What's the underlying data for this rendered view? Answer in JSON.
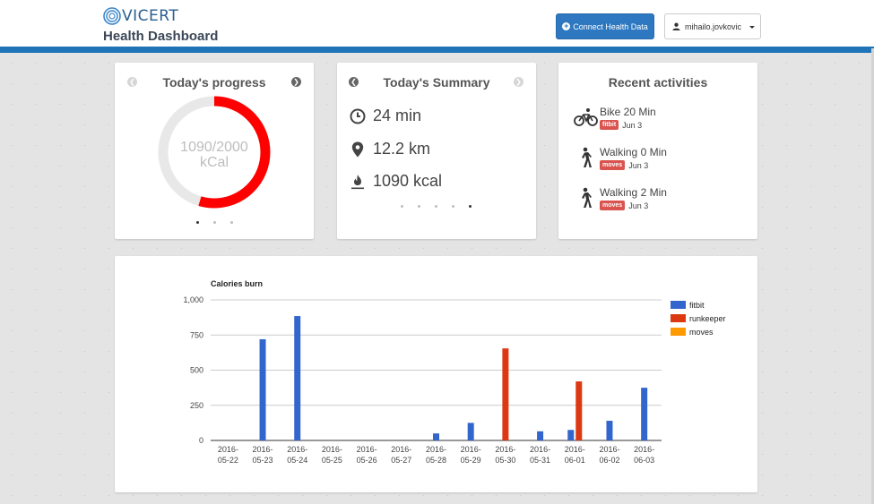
{
  "header": {
    "logo_text": "VICERT",
    "title": "Health Dashboard",
    "connect_button": "Connect Health Data",
    "user_name": "mihailo.jovkovic"
  },
  "progress_card": {
    "title": "Today's progress",
    "value_text": "1090/2000",
    "unit_text": "kCal",
    "fraction": 0.545
  },
  "summary_card": {
    "title": "Today's Summary",
    "duration": "24 min",
    "distance": "12.2 km",
    "energy": "1090 kcal"
  },
  "activities_card": {
    "title": "Recent activities",
    "items": [
      {
        "icon": "bike-icon",
        "title": "Bike 20 Min",
        "source": "fitbit",
        "date": "Jun 3"
      },
      {
        "icon": "walking-icon",
        "title": "Walking 0 Min",
        "source": "moves",
        "date": "Jun 3"
      },
      {
        "icon": "walking-icon",
        "title": "Walking 2 Min",
        "source": "moves",
        "date": "Jun 3"
      }
    ]
  },
  "colors": {
    "header_bar": "#1f73b7",
    "progress_ring": "#ff0000",
    "badge": "#d9534f",
    "fitbit": "#3366cc",
    "runkeeper": "#dc3912",
    "moves": "#ff9900"
  },
  "chart_data": {
    "type": "bar",
    "title": "Calories burn",
    "categories": [
      "2016-05-22",
      "2016-05-23",
      "2016-05-24",
      "2016-05-25",
      "2016-05-26",
      "2016-05-27",
      "2016-05-28",
      "2016-05-29",
      "2016-05-30",
      "2016-05-31",
      "2016-06-01",
      "2016-06-02",
      "2016-06-03"
    ],
    "category_labels": [
      [
        "2016-",
        "05-22"
      ],
      [
        "2016-",
        "05-23"
      ],
      [
        "2016-",
        "05-24"
      ],
      [
        "2016-",
        "05-25"
      ],
      [
        "2016-",
        "05-26"
      ],
      [
        "2016-",
        "05-27"
      ],
      [
        "2016-",
        "05-28"
      ],
      [
        "2016-",
        "05-29"
      ],
      [
        "2016-",
        "05-30"
      ],
      [
        "2016-",
        "05-31"
      ],
      [
        "2016-",
        "06-01"
      ],
      [
        "2016-",
        "06-02"
      ],
      [
        "2016-",
        "06-03"
      ]
    ],
    "series": [
      {
        "name": "fitbit",
        "color": "#3366cc",
        "values": [
          0,
          720,
          885,
          0,
          0,
          0,
          50,
          125,
          0,
          65,
          75,
          140,
          375
        ]
      },
      {
        "name": "runkeeper",
        "color": "#dc3912",
        "values": [
          0,
          0,
          0,
          0,
          0,
          0,
          0,
          0,
          655,
          0,
          420,
          0,
          0
        ]
      },
      {
        "name": "moves",
        "color": "#ff9900",
        "values": [
          0,
          0,
          0,
          0,
          0,
          0,
          0,
          0,
          0,
          0,
          0,
          0,
          0
        ]
      }
    ],
    "ylim": [
      0,
      1000
    ],
    "yticks": [
      "0",
      "250",
      "500",
      "750",
      "1,000"
    ],
    "ytick_values": [
      0,
      250,
      500,
      750,
      1000
    ],
    "grid": true,
    "legend": "right"
  }
}
